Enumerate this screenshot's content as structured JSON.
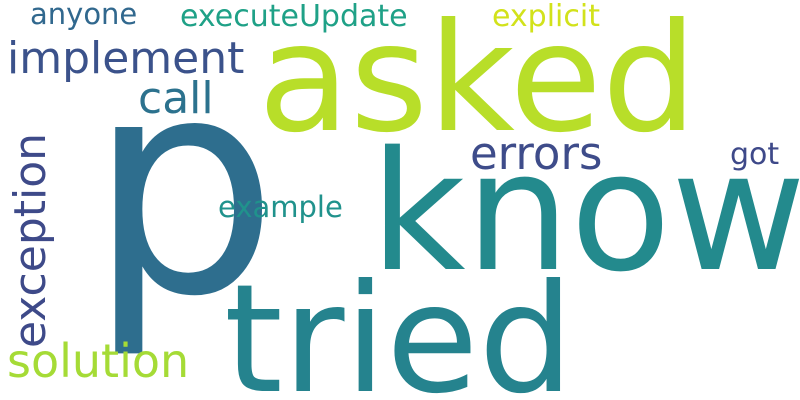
{
  "words": {
    "p": {
      "text": "p",
      "color": "#2e6e8e"
    },
    "asked": {
      "text": "asked",
      "color": "#b8de29"
    },
    "know": {
      "text": "know",
      "color": "#238a8d"
    },
    "tried": {
      "text": "tried",
      "color": "#25838e"
    },
    "implement": {
      "text": "implement",
      "color": "#3b528b"
    },
    "exception": {
      "text": "exception",
      "color": "#3e4a89"
    },
    "solution": {
      "text": "solution",
      "color": "#a5db36"
    },
    "errors": {
      "text": "errors",
      "color": "#3e4c8a"
    },
    "call": {
      "text": "call",
      "color": "#2c728e"
    },
    "executeUpdate": {
      "text": "executeUpdate",
      "color": "#1fa187"
    },
    "explicit": {
      "text": "explicit",
      "color": "#d2e21b"
    },
    "anyone": {
      "text": "anyone",
      "color": "#31688e"
    },
    "example": {
      "text": "example",
      "color": "#20928c"
    },
    "got": {
      "text": "got",
      "color": "#3e4989"
    }
  }
}
